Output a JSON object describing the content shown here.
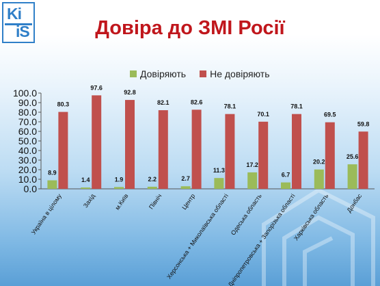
{
  "slide": {
    "title": "Довіра до ЗМІ Росії"
  },
  "logo": {
    "line1": "Ki",
    "line2": "iS"
  },
  "colors": {
    "trust": "#9bbb59",
    "distrust": "#c0504d",
    "title": "#c0161c"
  },
  "chart_data": {
    "type": "bar",
    "categories": [
      "Україна в цілому",
      "Захід",
      "м.Київ",
      "Північ",
      "Центр",
      "Херсонська + Миколаївська області",
      "Одеська область",
      "Дніпропетровська + Запорізька області",
      "Харківська область",
      "Донбас"
    ],
    "series": [
      {
        "name": "Довіряють",
        "color": "#9bbb59",
        "values": [
          8.9,
          1.4,
          1.9,
          2.2,
          2.7,
          11.3,
          17.2,
          6.7,
          20.2,
          25.6
        ]
      },
      {
        "name": "Не довіряють",
        "color": "#c0504d",
        "values": [
          80.3,
          97.6,
          92.8,
          82.1,
          82.6,
          78.1,
          70.1,
          78.1,
          69.5,
          59.8
        ]
      }
    ],
    "yticks": [
      "0.0",
      "10.0",
      "20.0",
      "30.0",
      "40.0",
      "50.0",
      "60.0",
      "70.0",
      "80.0",
      "90.0",
      "100.0"
    ],
    "ylim": [
      0,
      100
    ],
    "legend_position": "top",
    "data_labels": true
  }
}
